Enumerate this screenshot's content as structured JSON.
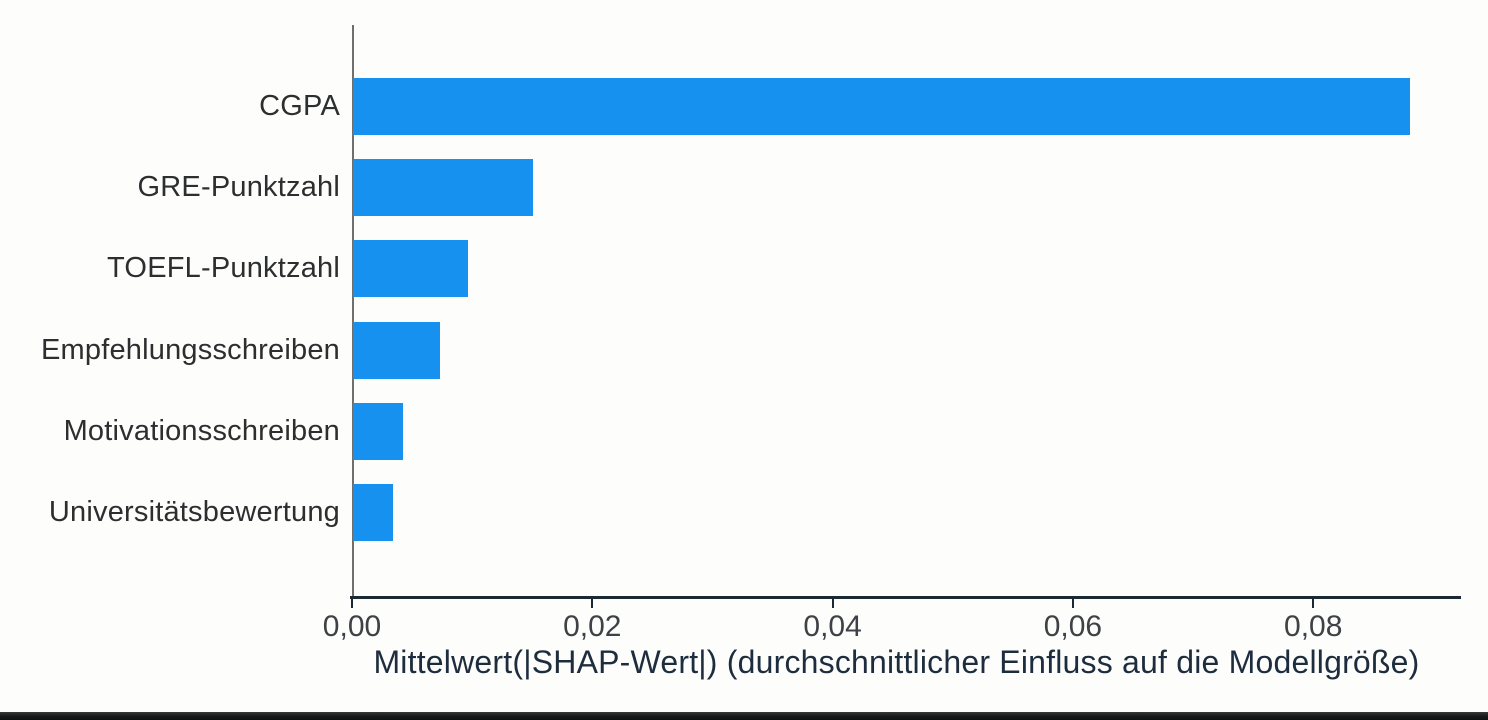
{
  "chart_data": {
    "type": "bar",
    "orientation": "horizontal",
    "title": "",
    "categories": [
      "CGPA",
      "GRE-Punktzahl",
      "TOEFL-Punktzahl",
      "Empfehlungsschreiben",
      "Motivationsschreiben",
      "Universitätsbewertung"
    ],
    "values": [
      0.088,
      0.015,
      0.0096,
      0.0072,
      0.0042,
      0.0033
    ],
    "xlabel": "Mittelwert(|SHAP-Wert|) (durchschnittlicher Einfluss auf die Modellgröße)",
    "ylabel": "",
    "x_ticks": [
      "0,00",
      "0,02",
      "0,04",
      "0,06",
      "0,08"
    ],
    "x_tick_values": [
      0,
      0.02,
      0.04,
      0.06,
      0.08
    ],
    "xlim": [
      0,
      0.0923
    ],
    "grid": false,
    "legend": false,
    "bar_color": "#1791F0",
    "axis_line_color": "#1c2836",
    "left_spine_color": "#6f6f6f",
    "category_label_color": "#2d2e30",
    "tick_label_color": "#3e4145",
    "xlabel_color": "#1e2d3e",
    "background_color": "#fdfdfc"
  },
  "decor": {
    "bottom_strip_color": "#17181a"
  }
}
